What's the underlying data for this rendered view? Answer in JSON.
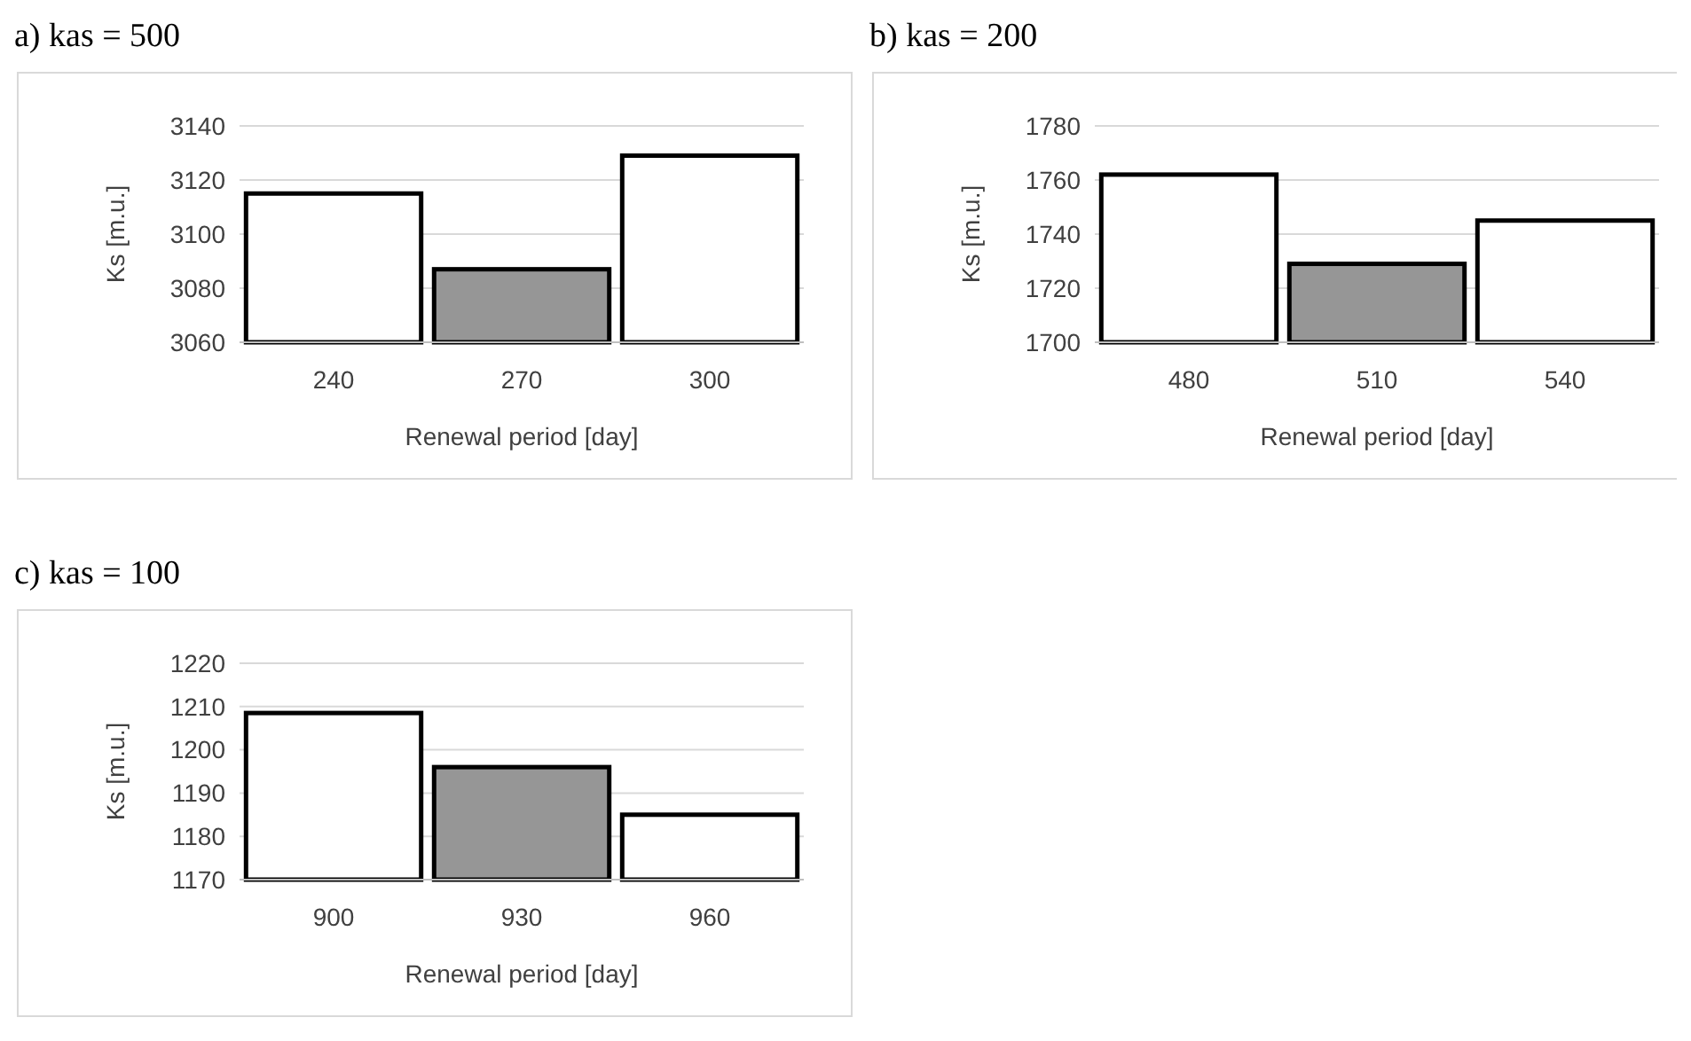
{
  "chart_data": [
    {
      "type": "bar",
      "title": "a) kas = 500",
      "xlabel": "Renewal period [day]",
      "ylabel": "Ks [m.u.]",
      "categories": [
        "240",
        "270",
        "300"
      ],
      "values": [
        3115,
        3087,
        3129
      ],
      "colors": [
        "#ffffff",
        "#969696",
        "#ffffff"
      ],
      "ylim": [
        3060,
        3140
      ],
      "yticks": [
        3060,
        3080,
        3100,
        3120,
        3140
      ],
      "grid": "y"
    },
    {
      "type": "bar",
      "title": "b) kas = 200",
      "xlabel": "Renewal period [day]",
      "ylabel": "Ks [m.u.]",
      "categories": [
        "480",
        "510",
        "540"
      ],
      "values": [
        1762,
        1729,
        1745
      ],
      "colors": [
        "#ffffff",
        "#969696",
        "#ffffff"
      ],
      "ylim": [
        1700,
        1780
      ],
      "yticks": [
        1700,
        1720,
        1740,
        1760,
        1780
      ],
      "grid": "y"
    },
    {
      "type": "bar",
      "title": "c) kas = 100",
      "xlabel": "Renewal period [day]",
      "ylabel": "Ks [m.u.]",
      "categories": [
        "900",
        "930",
        "960"
      ],
      "values": [
        1208.5,
        1196,
        1185
      ],
      "colors": [
        "#ffffff",
        "#969696",
        "#ffffff"
      ],
      "ylim": [
        1170,
        1220
      ],
      "yticks": [
        1170,
        1180,
        1190,
        1200,
        1210,
        1220
      ],
      "grid": "y"
    }
  ]
}
